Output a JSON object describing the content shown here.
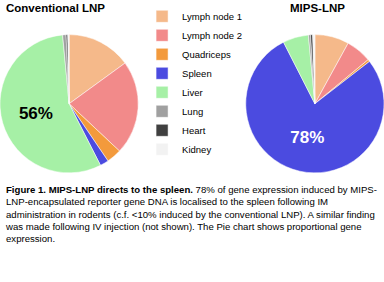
{
  "chart_data": [
    {
      "type": "pie",
      "title": "Conventional LNP",
      "categories": [
        "Lymph node 1",
        "Lymph node 2",
        "Quadriceps",
        "Spleen",
        "Liver",
        "Lung",
        "Heart",
        "Kidney"
      ],
      "values": [
        15,
        22,
        3.5,
        2,
        56,
        0.8,
        0.4,
        0.3
      ],
      "value_labels": [
        null,
        null,
        null,
        null,
        "56%",
        null,
        null,
        null
      ],
      "colors": [
        "#f5b98a",
        "#f28a8a",
        "#f39a3c",
        "#4b4be0",
        "#a6f0a6",
        "#a0a0a0",
        "#404040",
        "#f2f2f2"
      ],
      "legend": "top"
    },
    {
      "type": "pie",
      "title": "MIPS-LNP",
      "categories": [
        "Lymph node 1",
        "Lymph node 2",
        "Quadriceps",
        "Spleen",
        "Liver",
        "Lung",
        "Heart",
        "Kidney"
      ],
      "values": [
        8,
        6,
        0.5,
        78,
        6,
        0.5,
        0.5,
        0.5
      ],
      "value_labels": [
        null,
        null,
        null,
        "78%",
        null,
        null,
        null,
        null
      ],
      "colors": [
        "#f5b98a",
        "#f28a8a",
        "#f39a3c",
        "#4b4be0",
        "#a6f0a6",
        "#a0a0a0",
        "#404040",
        "#f2f2f2"
      ]
    }
  ],
  "caption": {
    "label": "Figure 1. MIPS-LNP directs to the spleen.",
    "text": "78% of gene expression induced by MIPS-LNP-encapsulated reporter gene DNA is localised to the spleen following IM administration in rodents (c.f. <10% induced by the conventional LNP). A similar finding was made following IV injection (not shown). The Pie chart shows proportional gene expression."
  }
}
